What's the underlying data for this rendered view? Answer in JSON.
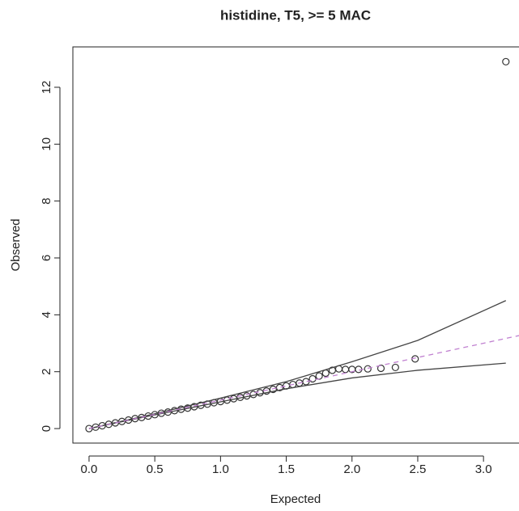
{
  "chart_data": {
    "type": "scatter",
    "title": "histidine, T5, >= 5 MAC",
    "x_label": "Expected",
    "y_label": "Observed",
    "xlim": [
      -0.123,
      3.27
    ],
    "ylim": [
      -0.51,
      13.42
    ],
    "xticks": [
      {
        "value": 0,
        "label": "0.0"
      },
      0.5,
      {
        "value": 1,
        "label": "1.0"
      },
      1.5,
      {
        "value": 2,
        "label": "2.0"
      },
      2.5,
      {
        "value": 3,
        "label": "3.0"
      }
    ],
    "yticks": [
      0,
      2,
      4,
      6,
      8,
      10,
      12
    ],
    "series": [
      {
        "type": "scatter",
        "color": "#333333",
        "x": [
          0.0,
          0.05,
          0.1,
          0.15,
          0.2,
          0.25,
          0.3,
          0.35,
          0.4,
          0.45,
          0.5,
          0.55,
          0.6,
          0.65,
          0.7,
          0.75,
          0.8,
          0.85,
          0.9,
          0.95,
          1.0,
          1.05,
          1.1,
          1.15,
          1.2,
          1.25,
          1.3,
          1.35,
          1.4,
          1.45,
          1.5,
          1.55,
          1.6,
          1.65,
          1.7,
          1.75,
          1.8,
          1.85,
          1.9,
          1.95,
          2.0,
          2.05,
          2.12,
          2.22,
          2.33,
          2.48,
          3.17
        ],
        "values": [
          0.0,
          0.05,
          0.1,
          0.15,
          0.2,
          0.25,
          0.3,
          0.35,
          0.39,
          0.44,
          0.49,
          0.54,
          0.58,
          0.63,
          0.68,
          0.72,
          0.77,
          0.82,
          0.86,
          0.91,
          0.95,
          1.0,
          1.05,
          1.1,
          1.15,
          1.2,
          1.26,
          1.32,
          1.38,
          1.44,
          1.5,
          1.55,
          1.6,
          1.65,
          1.75,
          1.85,
          1.95,
          2.05,
          2.1,
          2.08,
          2.08,
          2.08,
          2.1,
          2.12,
          2.15,
          2.45,
          12.9
        ]
      },
      {
        "type": "line",
        "color": "#444444",
        "x": [
          0,
          0.5,
          1.0,
          1.5,
          2.0,
          2.5,
          3.17
        ],
        "values": [
          0,
          0.52,
          1.07,
          1.65,
          2.35,
          3.1,
          4.5
        ]
      },
      {
        "type": "line",
        "color": "#444444",
        "x": [
          0,
          0.5,
          1.0,
          1.5,
          2.0,
          2.5,
          3.17
        ],
        "values": [
          0,
          0.48,
          0.94,
          1.4,
          1.78,
          2.05,
          2.3
        ]
      },
      {
        "type": "line",
        "color": "#c080d0",
        "dashed": true,
        "x": [
          0,
          3.27
        ],
        "values": [
          0,
          3.27
        ]
      }
    ]
  }
}
